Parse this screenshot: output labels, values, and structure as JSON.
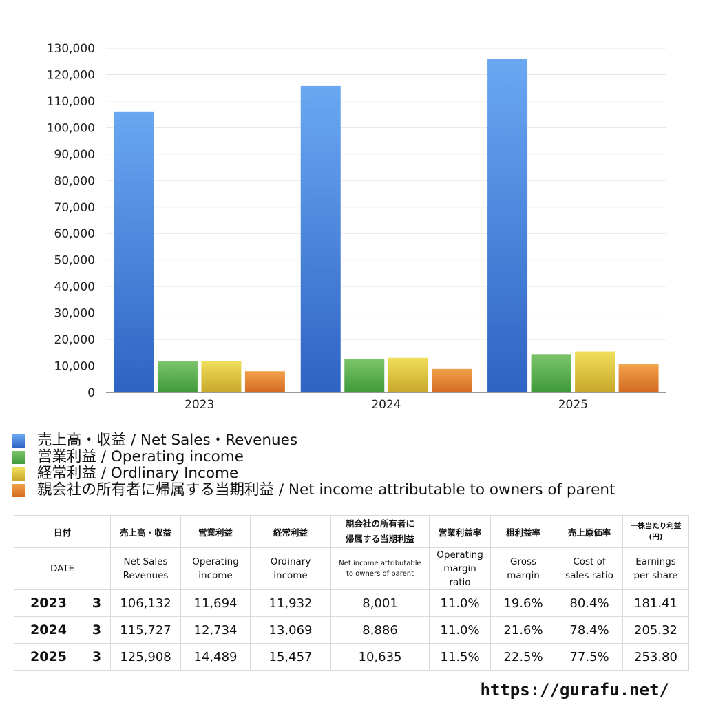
{
  "chart_data": {
    "type": "bar",
    "categories": [
      "2023",
      "2024",
      "2025"
    ],
    "series": [
      {
        "name": "売上高・収益 / Net Sales・Revenues",
        "values": [
          106132,
          115727,
          125908
        ],
        "color_top": "#6aa8f2",
        "color_bottom": "#2f63c4"
      },
      {
        "name": "営業利益 / Operating income",
        "values": [
          11694,
          12734,
          14489
        ],
        "color_top": "#7cc46b",
        "color_bottom": "#3f9a3a"
      },
      {
        "name": "経常利益 / Ordlinary Income",
        "values": [
          11932,
          13069,
          15457
        ],
        "color_top": "#f0df5a",
        "color_bottom": "#c9a72a"
      },
      {
        "name": "親会社の所有者に帰属する当期利益 / Net income attributable to owners of parent",
        "values": [
          8001,
          8886,
          10635
        ],
        "color_top": "#f2a14a",
        "color_bottom": "#d36b22"
      }
    ],
    "ylim": [
      0,
      130000
    ],
    "yticks": [
      "0",
      "10,000",
      "20,000",
      "30,000",
      "40,000",
      "50,000",
      "60,000",
      "70,000",
      "80,000",
      "90,000",
      "100,000",
      "110,000",
      "120,000",
      "130,000"
    ],
    "grid": true,
    "legend_position": "bottom"
  },
  "table": {
    "header_jp": {
      "date": "日付",
      "sales": "売上高・収益",
      "op": "営業利益",
      "ord": "経常利益",
      "net_line1": "親会社の所有者に",
      "net_line2": "帰属する当期利益",
      "opm": "営業利益率",
      "gm": "粗利益率",
      "cos": "売上原価率",
      "eps_line1": "一株当たり利益",
      "eps_line2": "(円)"
    },
    "header_en": {
      "date": "DATE",
      "sales_1": "Net Sales",
      "sales_2": "Revenues",
      "op_1": "Operating",
      "op_2": "income",
      "ord_1": "Ordinary",
      "ord_2": "income",
      "net_1": "Net income attributable",
      "net_2": "to owners of parent",
      "opm_1": "Operating",
      "opm_2": "margin",
      "opm_3": "ratio",
      "gm_1": "Gross",
      "gm_2": "margin",
      "cos_1": "Cost of",
      "cos_2": "sales ratio",
      "eps_1": "Earnings",
      "eps_2": "per share"
    },
    "rows": [
      {
        "year": "2023",
        "month": "3",
        "sales": "106,132",
        "op": "11,694",
        "ord": "11,932",
        "net": "8,001",
        "opm": "11.0%",
        "gm": "19.6%",
        "cos": "80.4%",
        "eps": "181.41"
      },
      {
        "year": "2024",
        "month": "3",
        "sales": "115,727",
        "op": "12,734",
        "ord": "13,069",
        "net": "8,886",
        "opm": "11.0%",
        "gm": "21.6%",
        "cos": "78.4%",
        "eps": "205.32"
      },
      {
        "year": "2025",
        "month": "3",
        "sales": "125,908",
        "op": "14,489",
        "ord": "15,457",
        "net": "10,635",
        "opm": "11.5%",
        "gm": "22.5%",
        "cos": "77.5%",
        "eps": "253.80"
      }
    ]
  },
  "footer": {
    "url": "https://gurafu.net/"
  }
}
